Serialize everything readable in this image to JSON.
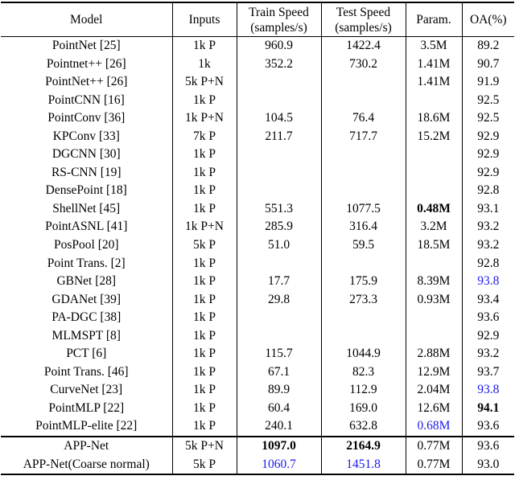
{
  "colors": {
    "highlight_blue": "#1a1aee",
    "text": "#000000",
    "rule": "#000000"
  },
  "table": {
    "columns": [
      {
        "id": "model",
        "label": "Model",
        "sublabel": ""
      },
      {
        "id": "inputs",
        "label": "Inputs",
        "sublabel": ""
      },
      {
        "id": "train_speed",
        "label": "Train Speed",
        "sublabel": "(samples/s)"
      },
      {
        "id": "test_speed",
        "label": "Test Speed",
        "sublabel": "(samples/s)"
      },
      {
        "id": "param",
        "label": "Param.",
        "sublabel": ""
      },
      {
        "id": "oa",
        "label": "OA(%)",
        "sublabel": ""
      }
    ],
    "rows": [
      {
        "section": "main",
        "cells": [
          {
            "text": "PointNet [25]"
          },
          {
            "text": "1k P"
          },
          {
            "text": "960.9"
          },
          {
            "text": "1422.4"
          },
          {
            "text": "3.5M"
          },
          {
            "text": "89.2"
          }
        ]
      },
      {
        "section": "main",
        "cells": [
          {
            "text": "Pointnet++ [26]"
          },
          {
            "text": "1k"
          },
          {
            "text": "352.2"
          },
          {
            "text": "730.2"
          },
          {
            "text": "1.41M"
          },
          {
            "text": "90.7"
          }
        ]
      },
      {
        "section": "main",
        "cells": [
          {
            "text": "PointNet++ [26]"
          },
          {
            "text": "5k P+N"
          },
          {
            "text": ""
          },
          {
            "text": ""
          },
          {
            "text": "1.41M"
          },
          {
            "text": "91.9"
          }
        ]
      },
      {
        "section": "main",
        "cells": [
          {
            "text": "PointCNN [16]"
          },
          {
            "text": "1k P"
          },
          {
            "text": ""
          },
          {
            "text": ""
          },
          {
            "text": ""
          },
          {
            "text": "92.5"
          }
        ]
      },
      {
        "section": "main",
        "cells": [
          {
            "text": "PointConv [36]"
          },
          {
            "text": "1k P+N"
          },
          {
            "text": "104.5"
          },
          {
            "text": "76.4"
          },
          {
            "text": "18.6M"
          },
          {
            "text": "92.5"
          }
        ]
      },
      {
        "section": "main",
        "cells": [
          {
            "text": "KPConv [33]"
          },
          {
            "text": "7k P"
          },
          {
            "text": "211.7"
          },
          {
            "text": "717.7"
          },
          {
            "text": "15.2M"
          },
          {
            "text": "92.9"
          }
        ]
      },
      {
        "section": "main",
        "cells": [
          {
            "text": "DGCNN [30]"
          },
          {
            "text": "1k P"
          },
          {
            "text": ""
          },
          {
            "text": ""
          },
          {
            "text": ""
          },
          {
            "text": "92.9"
          }
        ]
      },
      {
        "section": "main",
        "cells": [
          {
            "text": "RS-CNN [19]"
          },
          {
            "text": "1k P"
          },
          {
            "text": ""
          },
          {
            "text": ""
          },
          {
            "text": ""
          },
          {
            "text": "92.9"
          }
        ]
      },
      {
        "section": "main",
        "cells": [
          {
            "text": "DensePoint [18]"
          },
          {
            "text": "1k P"
          },
          {
            "text": ""
          },
          {
            "text": ""
          },
          {
            "text": ""
          },
          {
            "text": "92.8"
          }
        ]
      },
      {
        "section": "main",
        "cells": [
          {
            "text": "ShellNet [45]"
          },
          {
            "text": "1k P"
          },
          {
            "text": "551.3"
          },
          {
            "text": "1077.5"
          },
          {
            "text": "0.48M",
            "style": "bold"
          },
          {
            "text": "93.1"
          }
        ]
      },
      {
        "section": "main",
        "cells": [
          {
            "text": "PointASNL [41]"
          },
          {
            "text": "1k P+N"
          },
          {
            "text": "285.9"
          },
          {
            "text": "316.4"
          },
          {
            "text": "3.2M"
          },
          {
            "text": "93.2"
          }
        ]
      },
      {
        "section": "main",
        "cells": [
          {
            "text": "PosPool [20]"
          },
          {
            "text": "5k P"
          },
          {
            "text": "51.0"
          },
          {
            "text": "59.5"
          },
          {
            "text": "18.5M"
          },
          {
            "text": "93.2"
          }
        ]
      },
      {
        "section": "main",
        "cells": [
          {
            "text": "Point Trans. [2]"
          },
          {
            "text": "1k P"
          },
          {
            "text": ""
          },
          {
            "text": ""
          },
          {
            "text": ""
          },
          {
            "text": "92.8"
          }
        ]
      },
      {
        "section": "main",
        "cells": [
          {
            "text": "GBNet [28]"
          },
          {
            "text": "1k P"
          },
          {
            "text": "17.7"
          },
          {
            "text": "175.9"
          },
          {
            "text": "8.39M"
          },
          {
            "text": "93.8",
            "style": "blue"
          }
        ]
      },
      {
        "section": "main",
        "cells": [
          {
            "text": "GDANet [39]"
          },
          {
            "text": "1k P"
          },
          {
            "text": "29.8"
          },
          {
            "text": "273.3"
          },
          {
            "text": "0.93M"
          },
          {
            "text": "93.4"
          }
        ]
      },
      {
        "section": "main",
        "cells": [
          {
            "text": "PA-DGC [38]"
          },
          {
            "text": "1k P"
          },
          {
            "text": ""
          },
          {
            "text": ""
          },
          {
            "text": ""
          },
          {
            "text": "93.6"
          }
        ]
      },
      {
        "section": "main",
        "cells": [
          {
            "text": "MLMSPT [8]"
          },
          {
            "text": "1k P"
          },
          {
            "text": ""
          },
          {
            "text": ""
          },
          {
            "text": ""
          },
          {
            "text": "92.9"
          }
        ]
      },
      {
        "section": "main",
        "cells": [
          {
            "text": "PCT [6]"
          },
          {
            "text": "1k P"
          },
          {
            "text": "115.7"
          },
          {
            "text": "1044.9"
          },
          {
            "text": "2.88M"
          },
          {
            "text": "93.2"
          }
        ]
      },
      {
        "section": "main",
        "cells": [
          {
            "text": "Point Trans. [46]"
          },
          {
            "text": "1k P"
          },
          {
            "text": "67.1"
          },
          {
            "text": "82.3"
          },
          {
            "text": "12.9M"
          },
          {
            "text": "93.7"
          }
        ]
      },
      {
        "section": "main",
        "cells": [
          {
            "text": "CurveNet [23]"
          },
          {
            "text": "1k P"
          },
          {
            "text": "89.9"
          },
          {
            "text": "112.9"
          },
          {
            "text": "2.04M"
          },
          {
            "text": "93.8",
            "style": "blue"
          }
        ]
      },
      {
        "section": "main",
        "cells": [
          {
            "text": "PointMLP [22]"
          },
          {
            "text": "1k P"
          },
          {
            "text": "60.4"
          },
          {
            "text": "169.0"
          },
          {
            "text": "12.6M"
          },
          {
            "text": "94.1",
            "style": "bold"
          }
        ]
      },
      {
        "section": "main",
        "cells": [
          {
            "text": "PointMLP-elite [22]"
          },
          {
            "text": "1k P"
          },
          {
            "text": "240.1"
          },
          {
            "text": "632.8"
          },
          {
            "text": "0.68M",
            "style": "blue"
          },
          {
            "text": "93.6"
          }
        ]
      },
      {
        "section": "appnet",
        "cells": [
          {
            "text": "APP-Net"
          },
          {
            "text": "5k P+N"
          },
          {
            "text": "1097.0",
            "style": "bold"
          },
          {
            "text": "2164.9",
            "style": "bold"
          },
          {
            "text": "0.77M"
          },
          {
            "text": "93.6"
          }
        ]
      },
      {
        "section": "appnet",
        "cells": [
          {
            "text": "APP-Net(Coarse normal)"
          },
          {
            "text": "5k P"
          },
          {
            "text": "1060.7",
            "style": "blue"
          },
          {
            "text": "1451.8",
            "style": "blue"
          },
          {
            "text": "0.77M"
          },
          {
            "text": "93.0"
          }
        ]
      }
    ]
  }
}
